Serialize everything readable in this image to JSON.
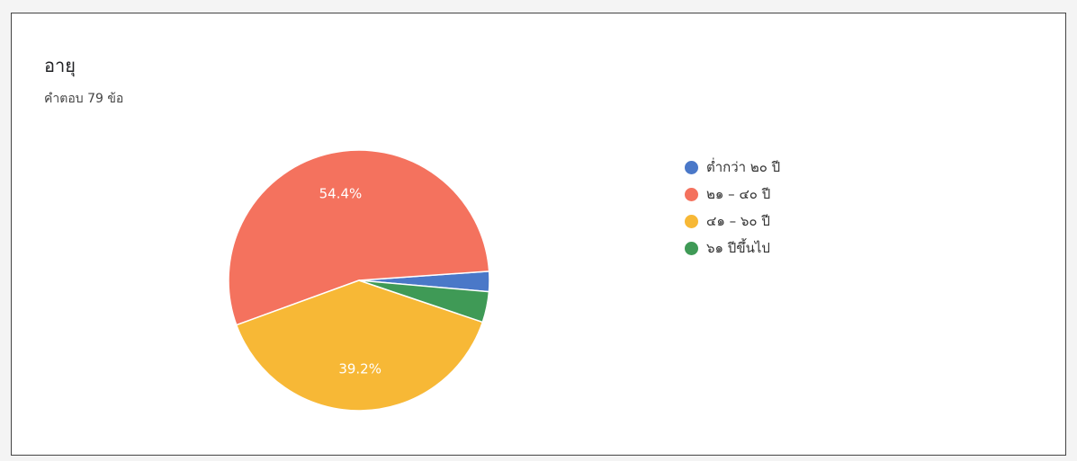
{
  "question": {
    "title": "อายุ",
    "responses": "คำตอบ 79 ข้อ"
  },
  "chart_data": {
    "type": "pie",
    "categories": [
      "ต่ำกว่า ๒๐ ปี",
      "๒๑ – ๔๐ ปี",
      "๔๑ – ๖๐ ปี",
      "๖๑ ปีขึ้นไป"
    ],
    "values": [
      2.5,
      54.4,
      39.2,
      3.8
    ],
    "data_labels": [
      "",
      "54.4%",
      "39.2%",
      ""
    ],
    "colors": [
      "#4a78c8",
      "#f4725e",
      "#f7b836",
      "#3f9a56"
    ],
    "start_angle_deg": 5,
    "direction": "counterclockwise",
    "legend_position": "right"
  }
}
